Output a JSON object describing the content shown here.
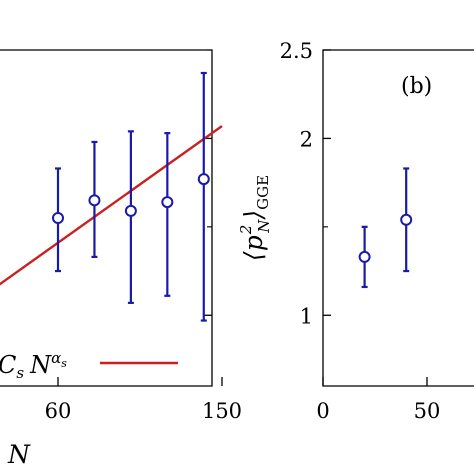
{
  "chart_data": [
    {
      "panel": "a",
      "type": "scatter",
      "x_tick_labels": [
        "60",
        "150"
      ],
      "xlabel": "N",
      "legend": {
        "entry": "C_s N^α_s",
        "placement": "bottom-right"
      },
      "points": [
        {
          "x": 60,
          "y": 1.55,
          "err_low": 1.25,
          "err_high": 1.83
        },
        {
          "x": 80,
          "y": 1.65,
          "err_low": 1.33,
          "err_high": 1.98
        },
        {
          "x": 100,
          "y": 1.59,
          "err_low": 1.07,
          "err_high": 2.04
        },
        {
          "x": 120,
          "y": 1.64,
          "err_low": 1.11,
          "err_high": 2.03
        },
        {
          "x": 140,
          "y": 1.77,
          "err_low": 0.97,
          "err_high": 2.37
        }
      ],
      "fit_line": {
        "x": [
          0,
          150
        ],
        "y": [
          0.97,
          2.07
        ]
      },
      "colors": {
        "points": "#1a1aa8",
        "fit": "#cc1f1f"
      }
    },
    {
      "panel": "b",
      "type": "scatter",
      "panel_label": "(b)",
      "y_tick_labels": [
        "1",
        "2",
        "2.5"
      ],
      "x_tick_labels": [
        "0",
        "50"
      ],
      "ylabel": "⟨p_N^2⟩_GGE",
      "ylim": [
        0.6,
        2.5
      ],
      "points": [
        {
          "x": 20,
          "y": 1.33,
          "err_low": 1.16,
          "err_high": 1.5
        },
        {
          "x": 40,
          "y": 1.54,
          "err_low": 1.25,
          "err_high": 1.83
        }
      ],
      "colors": {
        "points": "#1a1aa8"
      }
    }
  ]
}
